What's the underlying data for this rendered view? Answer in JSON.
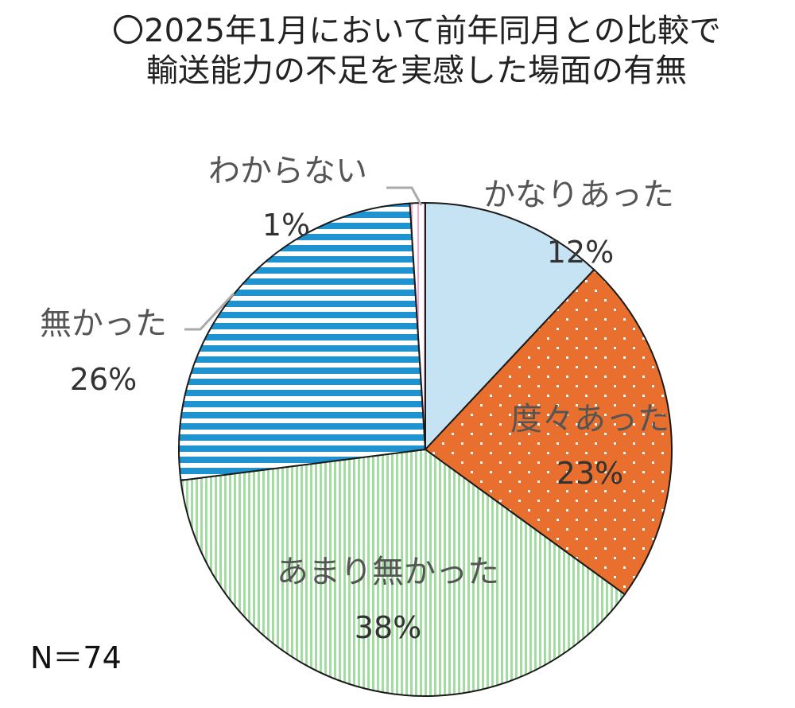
{
  "chart_data": {
    "type": "pie",
    "title": "〇2025年1月において前年同月との比較で",
    "subtitle": "輸送能力の不足を実感した場面の有無",
    "slices": [
      {
        "label": "かなりあった",
        "value": 12,
        "value_label": "12%",
        "color": "#c5e3f3",
        "pattern": "solid"
      },
      {
        "label": "度々あった",
        "value": 23,
        "value_label": "23%",
        "color": "#e86f2d",
        "pattern": "dots"
      },
      {
        "label": "あまり無かった",
        "value": 38,
        "value_label": "38%",
        "color": "#a3dca0",
        "pattern": "vertical-lines"
      },
      {
        "label": "無かった",
        "value": 26,
        "value_label": "26%",
        "color": "#1f92d0",
        "pattern": "horizontal-lines"
      },
      {
        "label": "わからない",
        "value": 1,
        "value_label": "1%",
        "color": "#f3a6cf",
        "pattern": "vertical-lines"
      }
    ],
    "start_angle": "12 o'clock",
    "direction": "clockwise",
    "legend": "none",
    "note": "N＝74"
  }
}
